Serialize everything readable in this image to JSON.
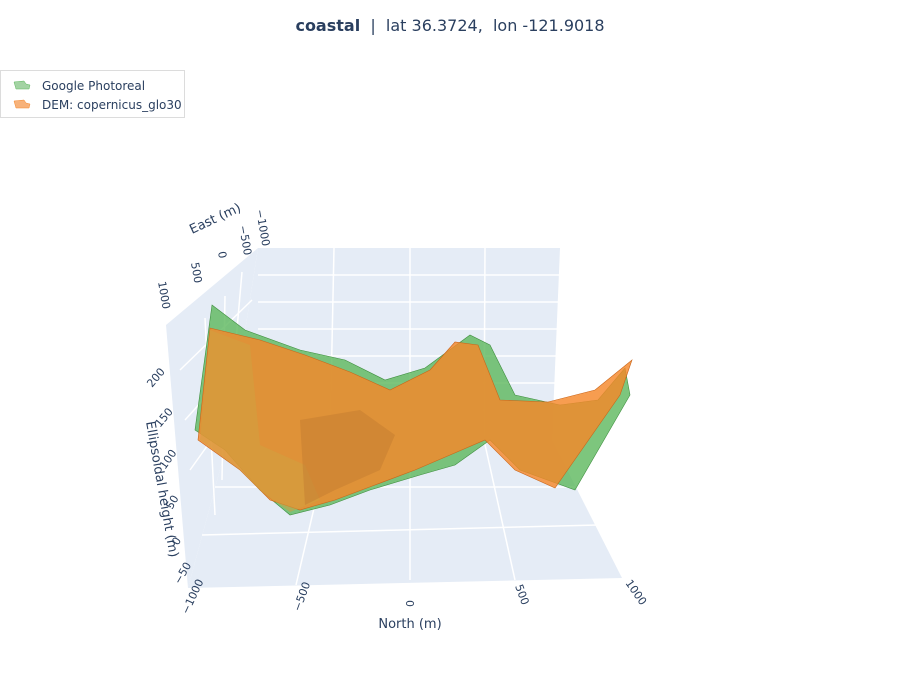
{
  "title": {
    "site": "coastal",
    "separator": "|",
    "coords": "lat 36.3724,  lon -121.9018"
  },
  "legend": {
    "position": "top-left",
    "items": [
      {
        "label": "Google Photoreal",
        "color": "#5cb85c"
      },
      {
        "label": "DEM: copernicus_glo30",
        "color": "#f5872a"
      }
    ]
  },
  "chart_data": {
    "type": "surface",
    "title": "coastal  |  lat 36.3724,  lon -121.9018",
    "xlabel": "North (m)",
    "ylabel": "East (m)",
    "zlabel": "Ellipsoidal height (m)",
    "xlim": [
      -1000,
      1000
    ],
    "ylim": [
      -1000,
      1000
    ],
    "zlim": [
      -50,
      220
    ],
    "x_ticks": [
      "−1000",
      "−500",
      "0",
      "500",
      "1000"
    ],
    "y_ticks": [
      "−1000",
      "−500",
      "0",
      "500",
      "1000"
    ],
    "z_ticks": [
      "−50",
      "0",
      "50",
      "100",
      "150",
      "200"
    ],
    "grid": true,
    "x": [
      -1000,
      -800,
      -600,
      -400,
      -200,
      0,
      200,
      400,
      600,
      800,
      1000
    ],
    "series": [
      {
        "name": "Google Photoreal",
        "color": "#5cb85c",
        "z_profile": [
          120,
          210,
          40,
          -30,
          20,
          60,
          160,
          40,
          -10,
          20,
          110
        ]
      },
      {
        "name": "DEM: copernicus_glo30",
        "color": "#f5872a",
        "z_profile": [
          90,
          180,
          50,
          -20,
          30,
          70,
          150,
          50,
          0,
          30,
          120
        ]
      }
    ]
  }
}
